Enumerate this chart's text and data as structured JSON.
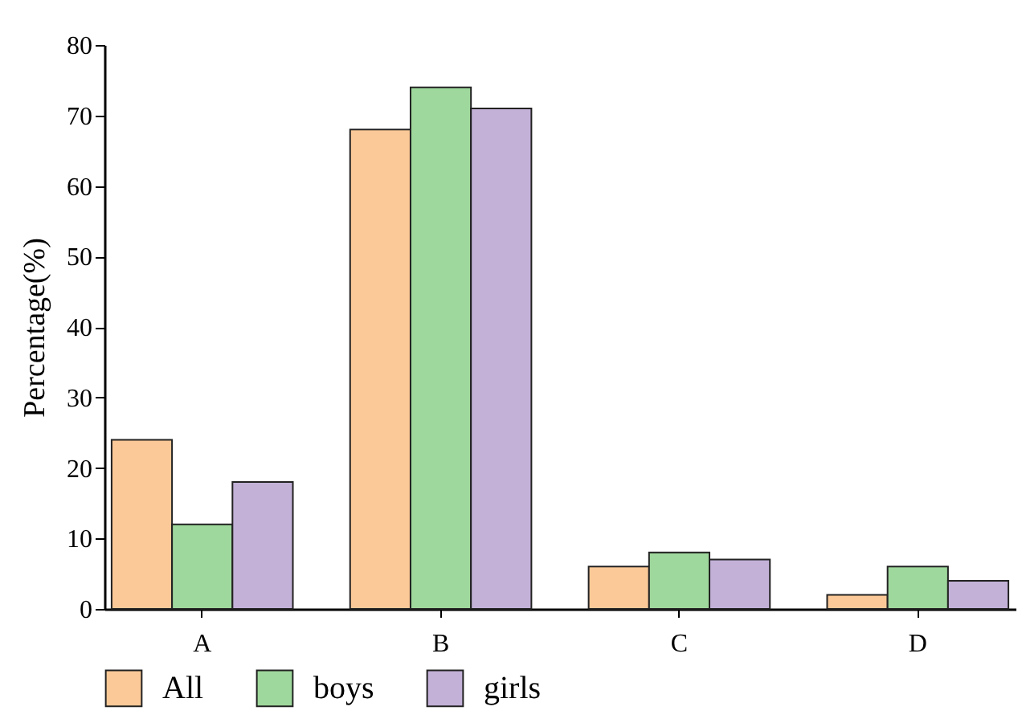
{
  "chart_data": {
    "type": "bar",
    "ylabel": "Percentage(%)",
    "categories": [
      "A",
      "B",
      "C",
      "D"
    ],
    "series": [
      {
        "name": "All",
        "color": "#fbc997",
        "values": [
          24,
          68,
          6,
          2
        ]
      },
      {
        "name": "boys",
        "color": "#9fd89c",
        "values": [
          12,
          74,
          8,
          6
        ]
      },
      {
        "name": "girls",
        "color": "#c3b1d8",
        "values": [
          18,
          71,
          7,
          4
        ]
      }
    ],
    "ylim": [
      0,
      80
    ],
    "yticks": [
      0,
      10,
      20,
      30,
      40,
      50,
      60,
      70,
      80
    ],
    "grid": false,
    "legend": "bottom"
  }
}
